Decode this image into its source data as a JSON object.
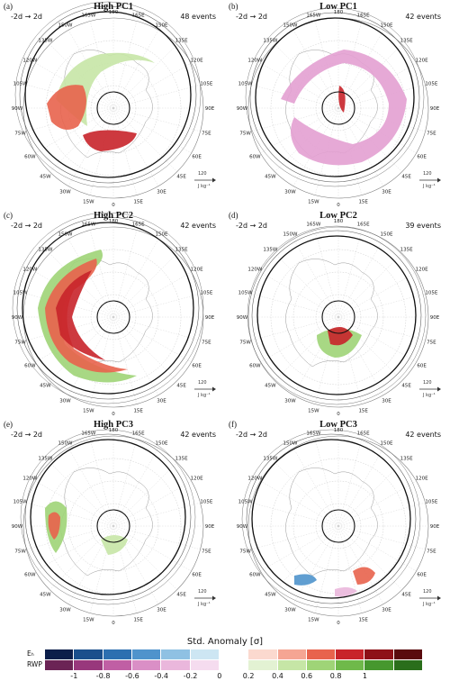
{
  "panels": [
    {
      "label": "(a)",
      "title": "High PC1",
      "time": "-2d → 2d",
      "events": "48 events"
    },
    {
      "label": "(b)",
      "title": "Low PC1",
      "time": "-2d → 2d",
      "events": "42 events"
    },
    {
      "label": "(c)",
      "title": "High PC2",
      "time": "-2d → 2d",
      "events": "42 events"
    },
    {
      "label": "(d)",
      "title": "Low PC2",
      "time": "-2d → 2d",
      "events": "39 events"
    },
    {
      "label": "(e)",
      "title": "High PC3",
      "time": "-2d → 2d",
      "events": "42 events"
    },
    {
      "label": "(f)",
      "title": "Low PC3",
      "time": "-2d → 2d",
      "events": "42 events"
    }
  ],
  "longitudes": [
    "180",
    "165E",
    "150E",
    "135E",
    "120E",
    "105E",
    "90E",
    "75E",
    "60E",
    "45E",
    "30E",
    "15E",
    "0",
    "15W",
    "30W",
    "45W",
    "60W",
    "75W",
    "90W",
    "105W",
    "120W",
    "135W",
    "150W",
    "165W"
  ],
  "vector_key": {
    "value": "120",
    "unit": "J kg⁻¹"
  },
  "colorbar": {
    "title": "Std. Anomaly [σ]",
    "row1_label": "Eₕ",
    "row2_label": "RWP",
    "row1_colors": [
      "#0b1e4a",
      "#1a4f8c",
      "#2c6fb0",
      "#4f93cc",
      "#8fc1e3",
      "#cde6f3",
      "#ffffff",
      "#fbd9cf",
      "#f5a593",
      "#e8634d",
      "#c8242a",
      "#8e1017",
      "#5a0a0d"
    ],
    "row2_colors": [
      "#6b2455",
      "#98387c",
      "#c05fa4",
      "#da8fc6",
      "#eab7dc",
      "#f5dcef",
      "#ffffff",
      "#e3f2d3",
      "#c6e6a6",
      "#9fd477",
      "#6fb94a",
      "#46972e",
      "#2a6e1b"
    ],
    "ticks": [
      "-1",
      "-0.8",
      "-0.6",
      "-0.4",
      "-0.2",
      "0",
      "0.2",
      "0.4",
      "0.6",
      "0.8",
      "1"
    ]
  }
}
